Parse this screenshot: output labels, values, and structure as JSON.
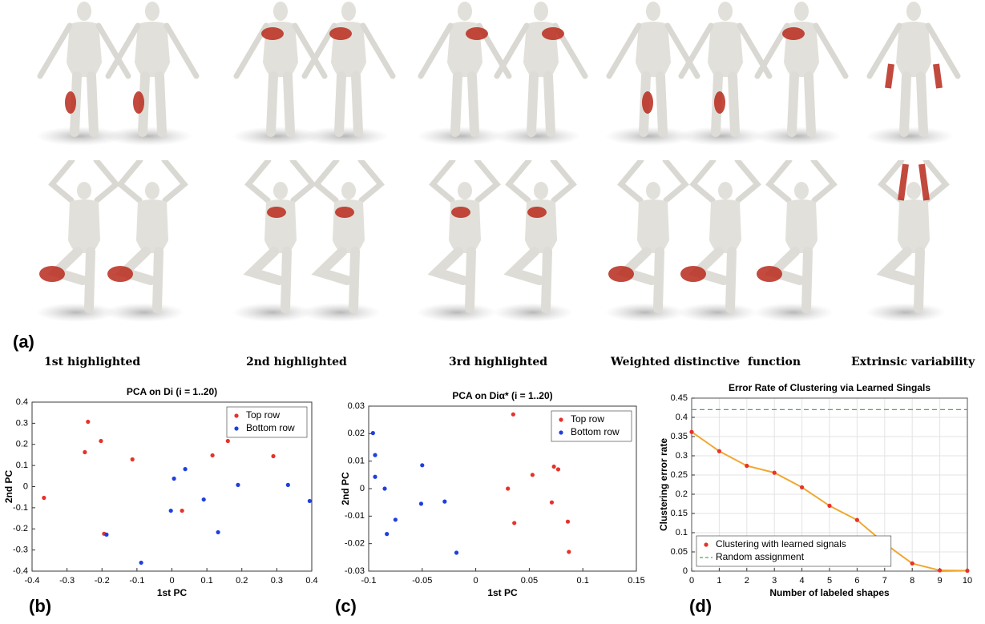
{
  "panel_labels": [
    "(a)",
    "(b)",
    "(c)",
    "(d)"
  ],
  "captions": [
    "1st highlighted",
    "2nd highlighted",
    "3rd highlighted",
    "Weighted distinctive  function",
    "Extrinsic variability"
  ],
  "chart_data": [
    {
      "type": "scatter",
      "title": "PCA on Di (i = 1..20)",
      "x_label": "1st PC",
      "y_label": "2nd PC",
      "xlim": [
        -0.4,
        0.4
      ],
      "xticks": [
        -0.4,
        -0.3,
        -0.2,
        -0.1,
        0,
        0.1,
        0.2,
        0.3,
        0.4
      ],
      "ylim": [
        -0.4,
        0.4
      ],
      "yticks": [
        -0.4,
        -0.3,
        -0.2,
        -0.1,
        0,
        0.1,
        0.2,
        0.3,
        0.4
      ],
      "grid": false,
      "legend": "upper right",
      "series": [
        {
          "name": "Top row",
          "color": "#e8312a",
          "x": [
            -0.366,
            -0.24,
            -0.249,
            -0.203,
            -0.113,
            -0.194,
            0.029,
            0.116,
            0.16,
            0.29
          ],
          "values": [
            -0.053,
            0.307,
            0.163,
            0.216,
            0.129,
            -0.223,
            -0.114,
            0.148,
            0.216,
            0.144
          ]
        },
        {
          "name": "Bottom row",
          "color": "#1f3fe0",
          "x": [
            -0.187,
            -0.088,
            0.006,
            0.038,
            -0.003,
            0.091,
            0.132,
            0.189,
            0.332,
            0.394
          ],
          "values": [
            -0.227,
            -0.36,
            0.038,
            0.083,
            -0.114,
            -0.061,
            -0.216,
            0.008,
            0.008,
            -0.068
          ]
        }
      ]
    },
    {
      "type": "scatter",
      "title": "PCA on Diα* (i = 1..20)",
      "x_label": "1st PC",
      "y_label": "2nd PC",
      "xlim": [
        -0.1,
        0.15
      ],
      "xticks": [
        -0.1,
        -0.05,
        0,
        0.05,
        0.1,
        0.15
      ],
      "ylim": [
        -0.03,
        0.03
      ],
      "yticks": [
        -0.03,
        -0.02,
        -0.01,
        0,
        0.01,
        0.02,
        0.03
      ],
      "grid": false,
      "legend": "upper right",
      "series": [
        {
          "name": "Top row",
          "color": "#e8312a",
          "x": [
            0.035,
            0.03,
            0.053,
            0.036,
            0.073,
            0.077,
            0.071,
            0.086,
            0.087
          ],
          "values": [
            0.027,
            0,
            0.005,
            -0.0125,
            0.008,
            0.007,
            -0.005,
            -0.012,
            -0.023
          ]
        },
        {
          "name": "Bottom row",
          "color": "#1f3fe0",
          "x": [
            -0.096,
            -0.094,
            -0.094,
            -0.085,
            -0.083,
            -0.075,
            -0.05,
            -0.051,
            -0.029,
            -0.018
          ],
          "values": [
            0.0202,
            0.0122,
            0.0043,
            0,
            -0.0165,
            -0.0113,
            0.0085,
            -0.0055,
            -0.0047,
            -0.0233
          ]
        }
      ]
    },
    {
      "type": "line",
      "title": "Error Rate of Clustering via Learned Singals",
      "x_label": "Number of labeled shapes",
      "y_label": "Clustering error rate",
      "xlim": [
        0,
        10
      ],
      "xticks": [
        0,
        1,
        2,
        3,
        4,
        5,
        6,
        7,
        8,
        9,
        10
      ],
      "ylim": [
        0,
        0.45
      ],
      "yticks": [
        0,
        0.05,
        0.1,
        0.15,
        0.2,
        0.25,
        0.3,
        0.35,
        0.4,
        0.45
      ],
      "grid": true,
      "legend": "lower left",
      "x": [
        0,
        1,
        2,
        3,
        4,
        5,
        6,
        7,
        8,
        9,
        10
      ],
      "series": [
        {
          "name": "Clustering with learned signals",
          "color": "#f0a830",
          "marker_color": "#e8312a",
          "values": [
            0.362,
            0.312,
            0.274,
            0.256,
            0.218,
            0.17,
            0.133,
            0.072,
            0.02,
            0.002,
            0.001
          ]
        }
      ],
      "reference_lines": [
        {
          "name": "Random assignment",
          "color": "#3cb44b",
          "value": 0.42
        }
      ]
    }
  ]
}
